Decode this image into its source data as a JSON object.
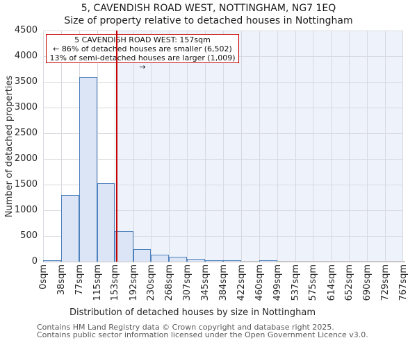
{
  "header": {
    "title": "5, CAVENDISH ROAD WEST, NOTTINGHAM, NG7 1EQ",
    "subtitle": "Size of property relative to detached houses in Nottingham"
  },
  "annotation": {
    "line1": "5 CAVENDISH ROAD WEST: 157sqm",
    "line2": "← 86% of detached houses are smaller (6,502)",
    "line3": "13% of semi-detached houses are larger (1,009) →"
  },
  "chart_data": {
    "type": "bar",
    "title": "5, CAVENDISH ROAD WEST, NOTTINGHAM, NG7 1EQ",
    "subtitle": "Size of property relative to detached houses in Nottingham",
    "xlabel": "Distribution of detached houses by size in Nottingham",
    "ylabel": "Number of detached properties",
    "bin_edges_sqm": [
      0,
      38,
      77,
      115,
      153,
      192,
      230,
      268,
      307,
      345,
      384,
      422,
      460,
      499,
      537,
      575,
      614,
      652,
      690,
      729,
      767
    ],
    "x_tick_labels": [
      "0sqm",
      "38sqm",
      "77sqm",
      "115sqm",
      "153sqm",
      "192sqm",
      "230sqm",
      "268sqm",
      "307sqm",
      "345sqm",
      "384sqm",
      "422sqm",
      "460sqm",
      "499sqm",
      "537sqm",
      "575sqm",
      "614sqm",
      "652sqm",
      "690sqm",
      "729sqm",
      "767sqm"
    ],
    "values": [
      15,
      1300,
      3600,
      1530,
      600,
      240,
      140,
      90,
      50,
      25,
      25,
      0,
      20,
      0,
      0,
      0,
      0,
      0,
      0,
      0
    ],
    "y_ticks": [
      0,
      500,
      1000,
      1500,
      2000,
      2500,
      3000,
      3500,
      4000,
      4500
    ],
    "ylim": [
      0,
      4500
    ],
    "xlim_sqm": [
      0,
      767
    ],
    "marker_value_sqm": 157,
    "shaded_region_sqm": [
      157,
      767
    ],
    "grid": true,
    "legend": "none",
    "colors": {
      "bar_fill": "#dbe5f5",
      "bar_border": "#4f81bd",
      "marker_line": "#c40000",
      "annotation_border": "#c40000",
      "shaded_region": "#eef3fb",
      "gridline": "#d8d8e0",
      "axis_baseline": "#c6c6c6"
    }
  },
  "footer": {
    "line1": "Contains HM Land Registry data © Crown copyright and database right 2025.",
    "line2": "Contains public sector information licensed under the Open Government Licence v3.0."
  }
}
